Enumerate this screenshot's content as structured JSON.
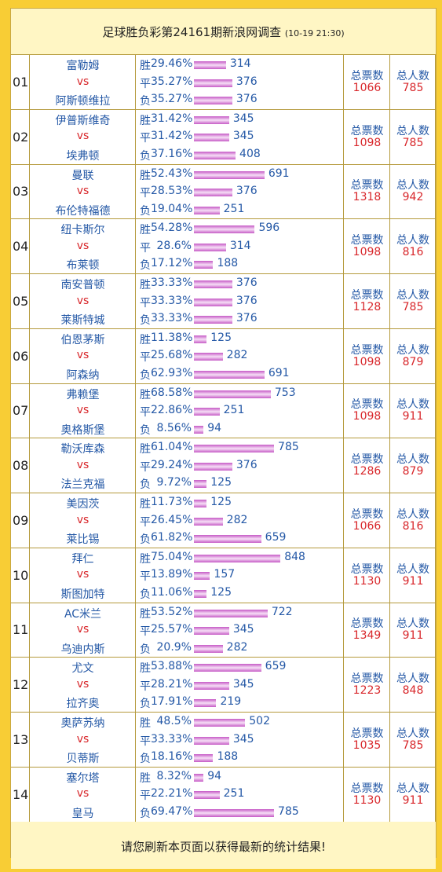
{
  "header": {
    "title": "足球胜负彩第24161期新浪网调查",
    "time": "(10-19 21:30)"
  },
  "labels": {
    "outcomes": [
      "胜",
      "平",
      "负"
    ],
    "vs": "vs",
    "total_votes": "总票数",
    "total_people": "总人数"
  },
  "rows": [
    {
      "no": "01",
      "home": "富勒姆",
      "away": "阿斯顿维拉",
      "pcts": [
        "29.46%",
        "35.27%",
        "35.27%"
      ],
      "counts": [
        314,
        376,
        376
      ],
      "total_votes": 1066,
      "total_people": 785
    },
    {
      "no": "02",
      "home": "伊普斯维奇",
      "away": "埃弗顿",
      "pcts": [
        "31.42%",
        "31.42%",
        "37.16%"
      ],
      "counts": [
        345,
        345,
        408
      ],
      "total_votes": 1098,
      "total_people": 785
    },
    {
      "no": "03",
      "home": "曼联",
      "away": "布伦特福德",
      "pcts": [
        "52.43%",
        "28.53%",
        "19.04%"
      ],
      "counts": [
        691,
        376,
        251
      ],
      "total_votes": 1318,
      "total_people": 942
    },
    {
      "no": "04",
      "home": "纽卡斯尔",
      "away": "布莱顿",
      "pcts": [
        "54.28%",
        "28.6%",
        "17.12%"
      ],
      "counts": [
        596,
        314,
        188
      ],
      "total_votes": 1098,
      "total_people": 816
    },
    {
      "no": "05",
      "home": "南安普顿",
      "away": "莱斯特城",
      "pcts": [
        "33.33%",
        "33.33%",
        "33.33%"
      ],
      "counts": [
        376,
        376,
        376
      ],
      "total_votes": 1128,
      "total_people": 785
    },
    {
      "no": "06",
      "home": "伯恩茅斯",
      "away": "阿森纳",
      "pcts": [
        "11.38%",
        "25.68%",
        "62.93%"
      ],
      "counts": [
        125,
        282,
        691
      ],
      "total_votes": 1098,
      "total_people": 879
    },
    {
      "no": "07",
      "home": "弗赖堡",
      "away": "奥格斯堡",
      "pcts": [
        "68.58%",
        "22.86%",
        "8.56%"
      ],
      "counts": [
        753,
        251,
        94
      ],
      "total_votes": 1098,
      "total_people": 911
    },
    {
      "no": "08",
      "home": "勒沃库森",
      "away": "法兰克福",
      "pcts": [
        "61.04%",
        "29.24%",
        "9.72%"
      ],
      "counts": [
        785,
        376,
        125
      ],
      "total_votes": 1286,
      "total_people": 879
    },
    {
      "no": "09",
      "home": "美因茨",
      "away": "莱比锡",
      "pcts": [
        "11.73%",
        "26.45%",
        "61.82%"
      ],
      "counts": [
        125,
        282,
        659
      ],
      "total_votes": 1066,
      "total_people": 816
    },
    {
      "no": "10",
      "home": "拜仁",
      "away": "斯图加特",
      "pcts": [
        "75.04%",
        "13.89%",
        "11.06%"
      ],
      "counts": [
        848,
        157,
        125
      ],
      "total_votes": 1130,
      "total_people": 911
    },
    {
      "no": "11",
      "home": "AC米兰",
      "away": "乌迪内斯",
      "pcts": [
        "53.52%",
        "25.57%",
        "20.9%"
      ],
      "counts": [
        722,
        345,
        282
      ],
      "total_votes": 1349,
      "total_people": 911
    },
    {
      "no": "12",
      "home": "尤文",
      "away": "拉齐奥",
      "pcts": [
        "53.88%",
        "28.21%",
        "17.91%"
      ],
      "counts": [
        659,
        345,
        219
      ],
      "total_votes": 1223,
      "total_people": 848
    },
    {
      "no": "13",
      "home": "奥萨苏纳",
      "away": "贝蒂斯",
      "pcts": [
        "48.5%",
        "33.33%",
        "18.16%"
      ],
      "counts": [
        502,
        345,
        188
      ],
      "total_votes": 1035,
      "total_people": 785
    },
    {
      "no": "14",
      "home": "塞尔塔",
      "away": "皇马",
      "pcts": [
        "8.32%",
        "22.21%",
        "69.47%"
      ],
      "counts": [
        94,
        251,
        785
      ],
      "total_votes": 1130,
      "total_people": 911
    }
  ],
  "footer": "请您刷新本页面以获得最新的统计结果!"
}
